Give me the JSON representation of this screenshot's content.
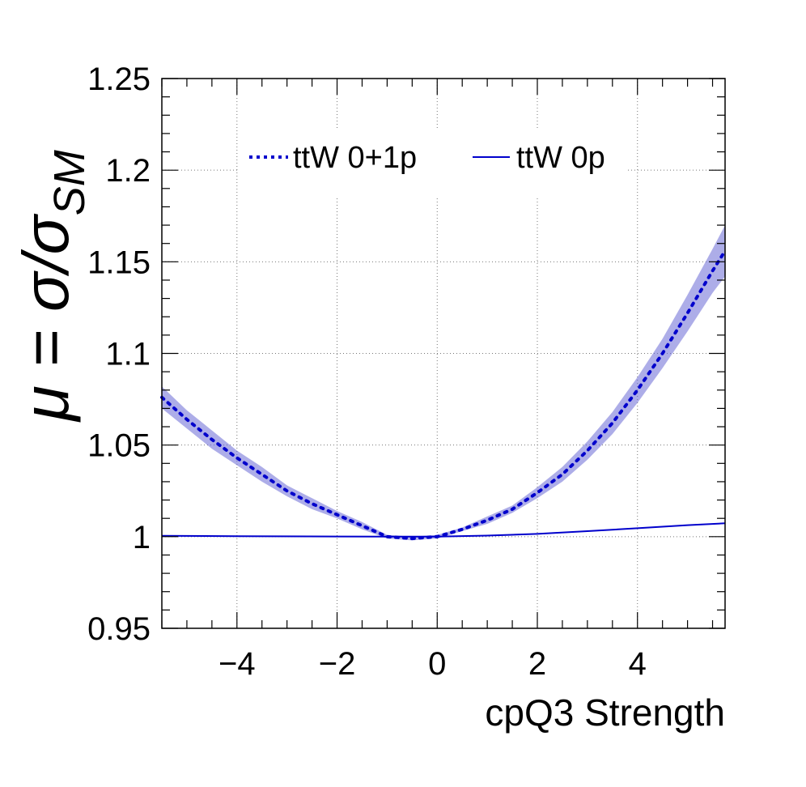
{
  "chart_data": {
    "type": "line",
    "title": "",
    "xlabel": "cpQ3 Strength",
    "ylabel": {
      "base": "μ = σ/σ",
      "subscript": "SM"
    },
    "xlim": [
      -5.5,
      5.75
    ],
    "ylim": [
      0.95,
      1.25
    ],
    "xticks": [
      -4,
      -2,
      0,
      2,
      4
    ],
    "xtick_labels": [
      "−4",
      "−2",
      "0",
      "2",
      "4"
    ],
    "yticks": [
      0.95,
      1.0,
      1.05,
      1.1,
      1.15,
      1.2,
      1.25
    ],
    "ytick_labels": [
      "0.95",
      "1",
      "1.05",
      "1.1",
      "1.15",
      "1.2",
      "1.25"
    ],
    "grid": true,
    "legend_placement": "top",
    "series": [
      {
        "name": "ttW 0+1p",
        "style": "dotted",
        "color": "#0000cc",
        "band_color": "#6a6ad6",
        "x": [
          -5.5,
          -5.0,
          -4.5,
          -4.0,
          -3.5,
          -3.0,
          -2.5,
          -2.0,
          -1.5,
          -1.0,
          -0.5,
          0.0,
          0.5,
          1.0,
          1.5,
          2.0,
          2.5,
          3.0,
          3.5,
          4.0,
          4.5,
          5.0,
          5.5,
          5.75
        ],
        "y": [
          1.076,
          1.064,
          1.053,
          1.043,
          1.034,
          1.025,
          1.018,
          1.012,
          1.006,
          1.0,
          0.999,
          1.0,
          1.004,
          1.009,
          1.015,
          1.024,
          1.034,
          1.047,
          1.062,
          1.08,
          1.1,
          1.122,
          1.145,
          1.156
        ],
        "band_halfwidth": [
          0.006,
          0.005,
          0.005,
          0.004,
          0.004,
          0.003,
          0.003,
          0.002,
          0.002,
          0.001,
          0.001,
          0.001,
          0.001,
          0.002,
          0.002,
          0.003,
          0.004,
          0.005,
          0.006,
          0.007,
          0.008,
          0.01,
          0.012,
          0.014
        ]
      },
      {
        "name": "ttW 0p",
        "style": "solid",
        "color": "#0000cc",
        "x": [
          -5.5,
          -4.0,
          -2.0,
          -1.0,
          0.0,
          1.0,
          2.0,
          3.0,
          4.0,
          5.0,
          5.75
        ],
        "y": [
          1.0005,
          1.0003,
          1.0001,
          1.0,
          1.0,
          1.0006,
          1.0015,
          1.003,
          1.0046,
          1.0063,
          1.0073
        ]
      }
    ]
  }
}
